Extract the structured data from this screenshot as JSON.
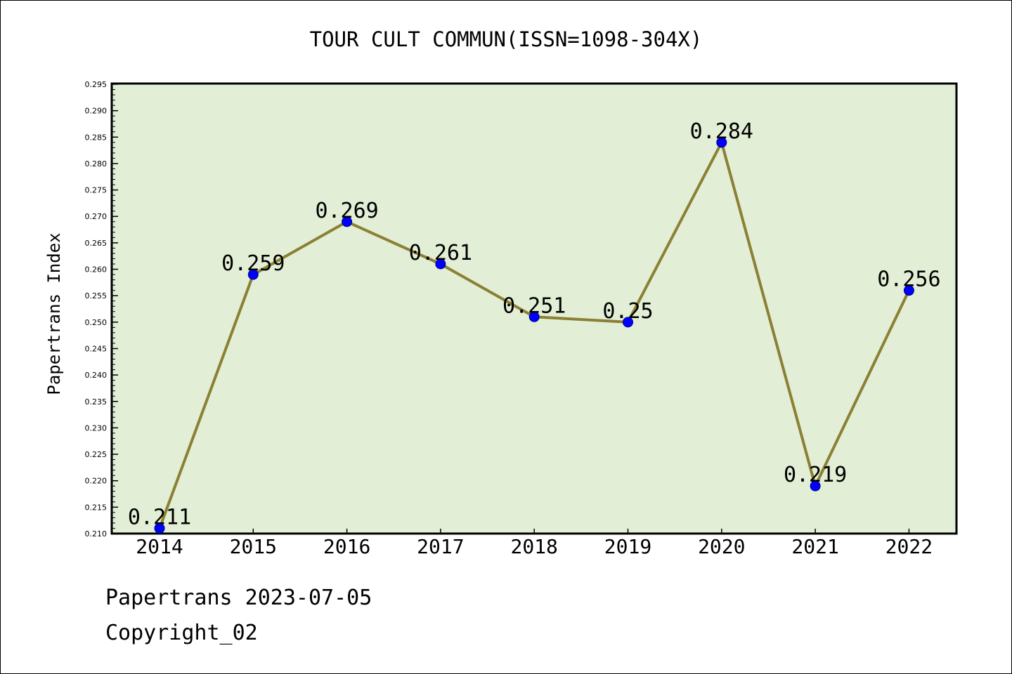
{
  "chart_data": {
    "type": "line",
    "title": "TOUR CULT COMMUN(ISSN=1098-304X)",
    "xlabel": "",
    "ylabel": "Papertrans Index",
    "categories": [
      "2014",
      "2015",
      "2016",
      "2017",
      "2018",
      "2019",
      "2020",
      "2021",
      "2022"
    ],
    "values": [
      0.211,
      0.259,
      0.269,
      0.261,
      0.251,
      0.25,
      0.284,
      0.219,
      0.256
    ],
    "data_labels": [
      "0.211",
      "0.259",
      "0.269",
      "0.261",
      "0.251",
      "0.25",
      "0.284",
      "0.219",
      "0.256"
    ],
    "ylim": [
      0.21,
      0.295
    ],
    "yticks": [
      "0.210",
      "0.215",
      "0.220",
      "0.225",
      "0.230",
      "0.235",
      "0.240",
      "0.245",
      "0.250",
      "0.255",
      "0.260",
      "0.265",
      "0.270",
      "0.275",
      "0.280",
      "0.285",
      "0.290",
      "0.295"
    ],
    "grid": false,
    "colors": {
      "plot_background": "#e2efd6",
      "line": "#8b8034",
      "marker": "#0000ff"
    }
  },
  "footer": {
    "line1": "Papertrans 2023-07-05",
    "line2": "Copyright_02"
  }
}
